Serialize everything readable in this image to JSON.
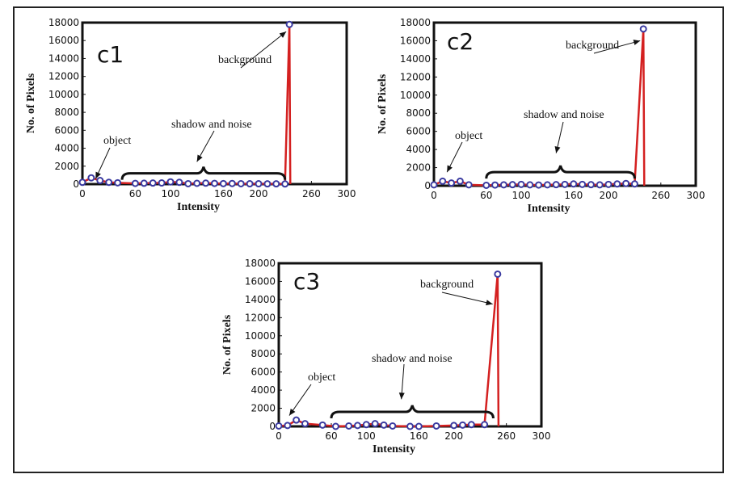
{
  "chart_data": [
    {
      "type": "line",
      "panel_label": "c1",
      "xlabel": "Intensity",
      "ylabel": "No. of Pixels",
      "xlim": [
        0,
        300
      ],
      "ylim": [
        0,
        18000
      ],
      "x_ticks": [
        0,
        60,
        100,
        160,
        200,
        260,
        300
      ],
      "y_ticks": [
        0,
        2000,
        4000,
        6000,
        8000,
        10000,
        12000,
        14000,
        16000,
        18000
      ],
      "line_color": "#d42020",
      "marker_color": "#3a3aa0",
      "x": [
        0,
        10,
        20,
        30,
        40,
        60,
        70,
        80,
        90,
        100,
        110,
        120,
        130,
        140,
        150,
        160,
        170,
        180,
        190,
        200,
        210,
        220,
        230,
        235,
        236
      ],
      "values": [
        200,
        700,
        400,
        200,
        150,
        80,
        100,
        120,
        130,
        250,
        200,
        50,
        90,
        110,
        80,
        60,
        70,
        50,
        40,
        40,
        30,
        30,
        20,
        17800,
        0
      ],
      "annotations": [
        {
          "text": "background",
          "points_to": [
            235,
            17000
          ]
        },
        {
          "text": "shadow and noise",
          "points_to": [
            130,
            2500
          ]
        },
        {
          "text": "object",
          "points_to": [
            15,
            600
          ]
        }
      ]
    },
    {
      "type": "line",
      "panel_label": "c2",
      "xlabel": "Intensity",
      "ylabel": "No. of Pixels",
      "xlim": [
        0,
        300
      ],
      "ylim": [
        0,
        18000
      ],
      "x_ticks": [
        0,
        60,
        100,
        160,
        200,
        260,
        300
      ],
      "y_ticks": [
        0,
        2000,
        4000,
        6000,
        8000,
        10000,
        12000,
        14000,
        16000,
        18000
      ],
      "line_color": "#d42020",
      "marker_color": "#3a3aa0",
      "x": [
        0,
        10,
        20,
        30,
        40,
        60,
        70,
        80,
        90,
        100,
        110,
        120,
        130,
        140,
        150,
        160,
        170,
        180,
        190,
        200,
        210,
        220,
        230,
        240,
        241
      ],
      "values": [
        100,
        500,
        300,
        500,
        100,
        50,
        80,
        100,
        120,
        150,
        100,
        80,
        100,
        120,
        150,
        200,
        150,
        120,
        100,
        150,
        200,
        250,
        200,
        17300,
        0
      ],
      "annotations": [
        {
          "text": "background",
          "points_to": [
            240,
            16000
          ]
        },
        {
          "text": "shadow and noise",
          "points_to": [
            140,
            3600
          ]
        },
        {
          "text": "object",
          "points_to": [
            15,
            1500
          ]
        }
      ]
    },
    {
      "type": "line",
      "panel_label": "c3",
      "xlabel": "Intensity",
      "ylabel": "No. of Pixels",
      "xlim": [
        0,
        300
      ],
      "ylim": [
        0,
        18000
      ],
      "x_ticks": [
        0,
        60,
        100,
        160,
        200,
        260,
        300
      ],
      "y_ticks": [
        0,
        2000,
        4000,
        6000,
        8000,
        10000,
        12000,
        14000,
        16000,
        18000
      ],
      "line_color": "#d42020",
      "marker_color": "#3a3aa0",
      "x": [
        0,
        10,
        20,
        30,
        50,
        65,
        80,
        90,
        100,
        110,
        120,
        130,
        150,
        160,
        180,
        200,
        210,
        220,
        235,
        250,
        251
      ],
      "values": [
        50,
        100,
        700,
        300,
        150,
        0,
        50,
        100,
        200,
        300,
        150,
        50,
        0,
        0,
        50,
        100,
        150,
        200,
        200,
        16800,
        0
      ],
      "annotations": [
        {
          "text": "background",
          "points_to": [
            248,
            13500
          ]
        },
        {
          "text": "shadow and noise",
          "points_to": [
            140,
            3000
          ]
        },
        {
          "text": "object",
          "points_to": [
            12,
            1200
          ]
        }
      ]
    }
  ]
}
